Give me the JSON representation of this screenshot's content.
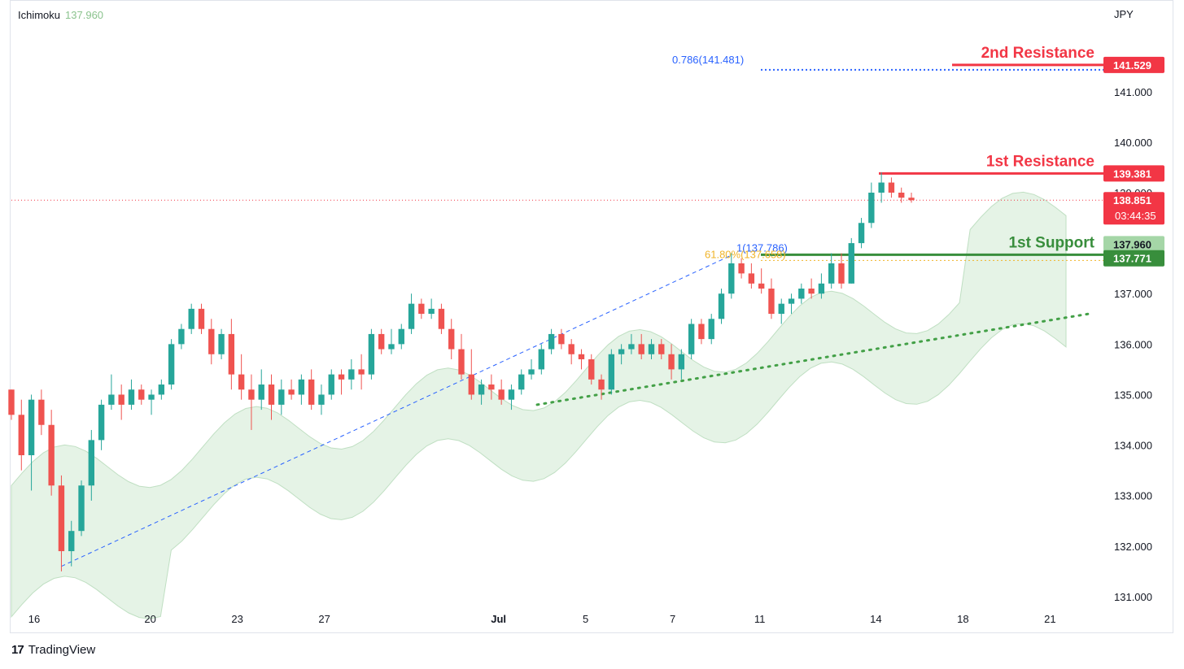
{
  "indicator": {
    "name": "Ichimoku",
    "value": "137.960"
  },
  "brand": {
    "logo": "17",
    "name": "TradingView"
  },
  "colors": {
    "up": "#26a69a",
    "down": "#ef5350",
    "cloud": "#e3f2e4",
    "resistance": "#f23645",
    "support": "#388e3c",
    "fib_blue": "#2962ff",
    "fib_gold": "#f0b429"
  },
  "chart_data": {
    "type": "candlestick",
    "currency": "JPY",
    "ylim": [
      130.5,
      142.3
    ],
    "y_ticks": [
      "131.000",
      "132.000",
      "133.000",
      "134.000",
      "135.000",
      "136.000",
      "137.000",
      "138.000",
      "139.000",
      "140.000",
      "141.000"
    ],
    "x_ticks": [
      {
        "label": "16",
        "i": 0
      },
      {
        "label": "20",
        "i": 4
      },
      {
        "label": "23",
        "i": 7
      },
      {
        "label": "27",
        "i": 10
      },
      {
        "label": "Jul",
        "i": 16,
        "bold": true
      },
      {
        "label": "5",
        "i": 19
      },
      {
        "label": "7",
        "i": 22
      },
      {
        "label": "11",
        "i": 25
      },
      {
        "label": "14",
        "i": 29
      },
      {
        "label": "18",
        "i": 32
      },
      {
        "label": "21",
        "i": 35
      }
    ],
    "candles": [
      [
        135.1,
        135.1,
        134.5,
        134.6
      ],
      [
        134.6,
        134.9,
        133.5,
        133.8
      ],
      [
        133.8,
        135.0,
        133.1,
        134.9
      ],
      [
        134.9,
        135.1,
        134.2,
        134.4
      ],
      [
        134.4,
        134.7,
        133.0,
        133.2
      ],
      [
        133.2,
        133.4,
        131.5,
        131.9
      ],
      [
        131.9,
        132.5,
        131.6,
        132.3
      ],
      [
        132.3,
        133.3,
        132.2,
        133.2
      ],
      [
        133.2,
        134.3,
        132.9,
        134.1
      ],
      [
        134.1,
        134.9,
        133.9,
        134.8
      ],
      [
        134.8,
        135.4,
        134.7,
        135.0
      ],
      [
        135.0,
        135.2,
        134.5,
        134.8
      ],
      [
        134.8,
        135.3,
        134.7,
        135.1
      ],
      [
        135.1,
        135.2,
        134.8,
        134.9
      ],
      [
        134.9,
        135.1,
        134.6,
        135.0
      ],
      [
        135.0,
        135.3,
        134.9,
        135.2
      ],
      [
        135.2,
        136.1,
        135.1,
        136.0
      ],
      [
        136.0,
        136.4,
        135.9,
        136.3
      ],
      [
        136.3,
        136.8,
        136.2,
        136.7
      ],
      [
        136.7,
        136.8,
        136.2,
        136.3
      ],
      [
        136.3,
        136.5,
        135.6,
        135.8
      ],
      [
        135.8,
        136.3,
        135.7,
        136.2
      ],
      [
        136.2,
        136.5,
        135.1,
        135.4
      ],
      [
        135.4,
        135.8,
        134.9,
        135.1
      ],
      [
        135.1,
        135.4,
        134.3,
        134.9
      ],
      [
        134.9,
        135.5,
        134.7,
        135.2
      ],
      [
        135.2,
        135.4,
        134.5,
        134.8
      ],
      [
        134.8,
        135.3,
        134.6,
        135.1
      ],
      [
        135.1,
        135.3,
        134.9,
        135.0
      ],
      [
        135.0,
        135.4,
        134.8,
        135.3
      ],
      [
        135.3,
        135.5,
        134.7,
        134.8
      ],
      [
        134.8,
        135.2,
        134.6,
        135.0
      ],
      [
        135.0,
        135.5,
        134.9,
        135.4
      ],
      [
        135.4,
        135.5,
        135.0,
        135.3
      ],
      [
        135.3,
        135.7,
        135.1,
        135.5
      ],
      [
        135.5,
        135.8,
        135.1,
        135.4
      ],
      [
        135.4,
        136.3,
        135.3,
        136.2
      ],
      [
        136.2,
        136.3,
        135.8,
        135.9
      ],
      [
        135.9,
        136.3,
        135.8,
        136.0
      ],
      [
        136.0,
        136.4,
        135.9,
        136.3
      ],
      [
        136.3,
        137.0,
        136.2,
        136.8
      ],
      [
        136.8,
        136.9,
        136.5,
        136.6
      ],
      [
        136.6,
        136.9,
        136.5,
        136.7
      ],
      [
        136.7,
        136.8,
        136.2,
        136.3
      ],
      [
        136.3,
        136.5,
        135.7,
        135.9
      ],
      [
        135.9,
        136.2,
        135.3,
        135.4
      ],
      [
        135.4,
        135.9,
        134.9,
        135.0
      ],
      [
        135.0,
        135.3,
        134.8,
        135.2
      ],
      [
        135.2,
        135.4,
        134.9,
        135.1
      ],
      [
        135.1,
        135.3,
        134.8,
        134.9
      ],
      [
        134.9,
        135.2,
        134.7,
        135.1
      ],
      [
        135.1,
        135.5,
        135.0,
        135.4
      ],
      [
        135.4,
        135.7,
        135.3,
        135.5
      ],
      [
        135.5,
        136.0,
        135.4,
        135.9
      ],
      [
        135.9,
        136.3,
        135.8,
        136.2
      ],
      [
        136.2,
        136.3,
        135.9,
        136.0
      ],
      [
        136.0,
        136.1,
        135.6,
        135.8
      ],
      [
        135.8,
        135.9,
        135.5,
        135.7
      ],
      [
        135.7,
        135.8,
        135.2,
        135.3
      ],
      [
        135.3,
        135.4,
        134.9,
        135.1
      ],
      [
        135.1,
        135.9,
        135.0,
        135.8
      ],
      [
        135.8,
        136.0,
        135.6,
        135.9
      ],
      [
        135.9,
        136.2,
        135.8,
        136.0
      ],
      [
        136.0,
        136.2,
        135.7,
        135.8
      ],
      [
        135.8,
        136.1,
        135.7,
        136.0
      ],
      [
        136.0,
        136.1,
        135.7,
        135.8
      ],
      [
        135.8,
        136.0,
        135.3,
        135.5
      ],
      [
        135.5,
        135.9,
        135.3,
        135.8
      ],
      [
        135.8,
        136.5,
        135.7,
        136.4
      ],
      [
        136.4,
        136.5,
        136.0,
        136.1
      ],
      [
        136.1,
        136.6,
        136.0,
        136.5
      ],
      [
        136.5,
        137.1,
        136.4,
        137.0
      ],
      [
        137.0,
        137.8,
        136.9,
        137.6
      ],
      [
        137.6,
        137.7,
        137.3,
        137.4
      ],
      [
        137.4,
        137.6,
        137.1,
        137.2
      ],
      [
        137.2,
        137.5,
        137.0,
        137.1
      ],
      [
        137.1,
        137.3,
        136.5,
        136.6
      ],
      [
        136.6,
        136.9,
        136.4,
        136.8
      ],
      [
        136.8,
        137.0,
        136.6,
        136.9
      ],
      [
        136.9,
        137.2,
        136.8,
        137.1
      ],
      [
        137.1,
        137.3,
        136.9,
        137.0
      ],
      [
        137.0,
        137.4,
        136.9,
        137.2
      ],
      [
        137.2,
        137.8,
        137.1,
        137.6
      ],
      [
        137.6,
        137.8,
        137.1,
        137.2
      ],
      [
        137.2,
        138.1,
        137.2,
        138.0
      ],
      [
        138.0,
        138.5,
        137.9,
        138.4
      ],
      [
        138.4,
        139.2,
        138.3,
        139.0
      ],
      [
        139.0,
        139.4,
        138.8,
        139.2
      ],
      [
        139.2,
        139.3,
        138.9,
        139.0
      ],
      [
        139.0,
        139.1,
        138.8,
        138.9
      ],
      [
        138.9,
        139.0,
        138.8,
        138.851
      ]
    ],
    "last_price": {
      "value": "138.851",
      "countdown": "03:44:35"
    },
    "levels": [
      {
        "name": "2nd Resistance",
        "value": 141.529,
        "label": "141.529",
        "kind": "resistance"
      },
      {
        "name": "1st Resistance",
        "value": 139.381,
        "label": "139.381",
        "kind": "resistance"
      },
      {
        "name": "1st Support",
        "value": 137.771,
        "label": "137.771",
        "kind": "support"
      }
    ],
    "ichimoku_label": "137.960",
    "fibonacci": [
      {
        "text": "0.786(141.481)",
        "value": 141.481
      },
      {
        "text": "1(137.786)",
        "value": 137.786
      },
      {
        "text": "61.80%(137.658)",
        "value": 137.658
      }
    ]
  }
}
